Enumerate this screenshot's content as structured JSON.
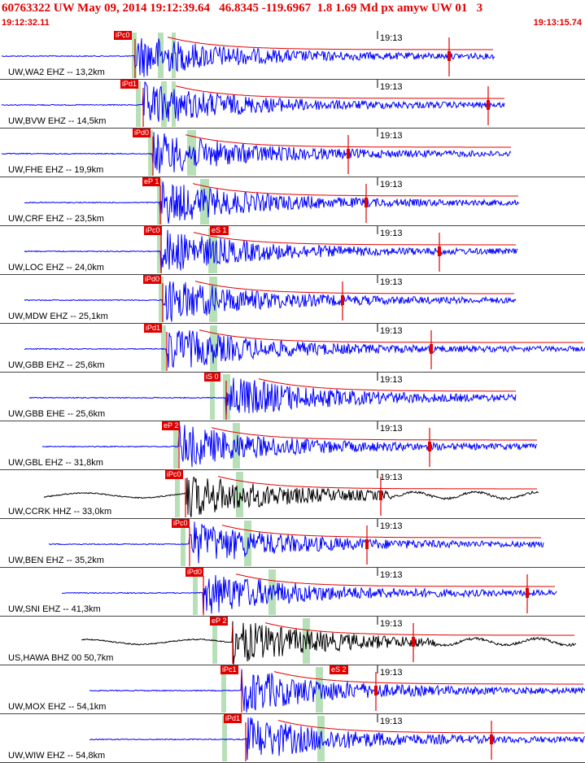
{
  "header": {
    "title": "60763322 UW May 09, 2014 19:12:39.64   46.8345 -119.6967  1.8 1.69 Md px amyw UW 01   3",
    "start_time": "19:12:32.11",
    "end_time": "19:13:15.74"
  },
  "colors": {
    "accent_red": "#e00000",
    "trace_blue": "#0000ff",
    "trace_black": "#000000",
    "green_band": "#b8e0b8",
    "separator": "#444444"
  },
  "traces": [
    {
      "station": "UW,WA2 EHZ -- 13,2km",
      "tick": "19:13",
      "pick": "iPc0",
      "pick2": "",
      "color": "blue"
    },
    {
      "station": "UW,BVW EHZ -- 14,5km",
      "tick": "19:13",
      "pick": "iPd1",
      "pick2": "",
      "color": "blue"
    },
    {
      "station": "UW,FHE EHZ -- 19,9km",
      "tick": "19:13",
      "pick": "iPd0",
      "pick2": "",
      "color": "blue"
    },
    {
      "station": "UW,CRF EHZ -- 23,5km",
      "tick": "19:13",
      "pick": "eP 1",
      "pick2": "",
      "color": "blue"
    },
    {
      "station": "UW,LOC EHZ -- 24,0km",
      "tick": "19:13",
      "pick": "iPc0",
      "pick2": "eS 1",
      "color": "blue"
    },
    {
      "station": "UW,MDW EHZ -- 25,1km",
      "tick": "19:13",
      "pick": "iPd0",
      "pick2": "",
      "color": "blue"
    },
    {
      "station": "UW,GBB EHZ -- 25,6km",
      "tick": "19:13",
      "pick": "iPd1",
      "pick2": "",
      "color": "blue"
    },
    {
      "station": "UW,GBB EHE -- 25,6km",
      "tick": "19:13",
      "pick": "iS 0",
      "pick2": "",
      "color": "blue"
    },
    {
      "station": "UW,GBL EHZ -- 31,8km",
      "tick": "19:13",
      "pick": "eP 2",
      "pick2": "",
      "color": "blue"
    },
    {
      "station": "UW,CCRK HHZ -- 33,0km",
      "tick": "19:13",
      "pick": "iPc0",
      "pick2": "",
      "color": "black"
    },
    {
      "station": "UW,BEN EHZ -- 35,2km",
      "tick": "19:13",
      "pick": "iPc0",
      "pick2": "",
      "color": "blue"
    },
    {
      "station": "UW,SNI EHZ -- 41,3km",
      "tick": "19:13",
      "pick": "iPd0",
      "pick2": "",
      "color": "blue"
    },
    {
      "station": "US,HAWA BHZ 00 50,7km",
      "tick": "19:13",
      "pick": "eP 2",
      "pick2": "",
      "color": "black"
    },
    {
      "station": "UW,MOX EHZ -- 54,1km",
      "tick": "19:13",
      "pick": "iPc1",
      "pick2": "eS 2",
      "color": "blue"
    },
    {
      "station": "UW,WIW EHZ -- 54,8km",
      "tick": "19:13",
      "pick": "iPd1",
      "pick2": "",
      "color": "blue"
    }
  ]
}
